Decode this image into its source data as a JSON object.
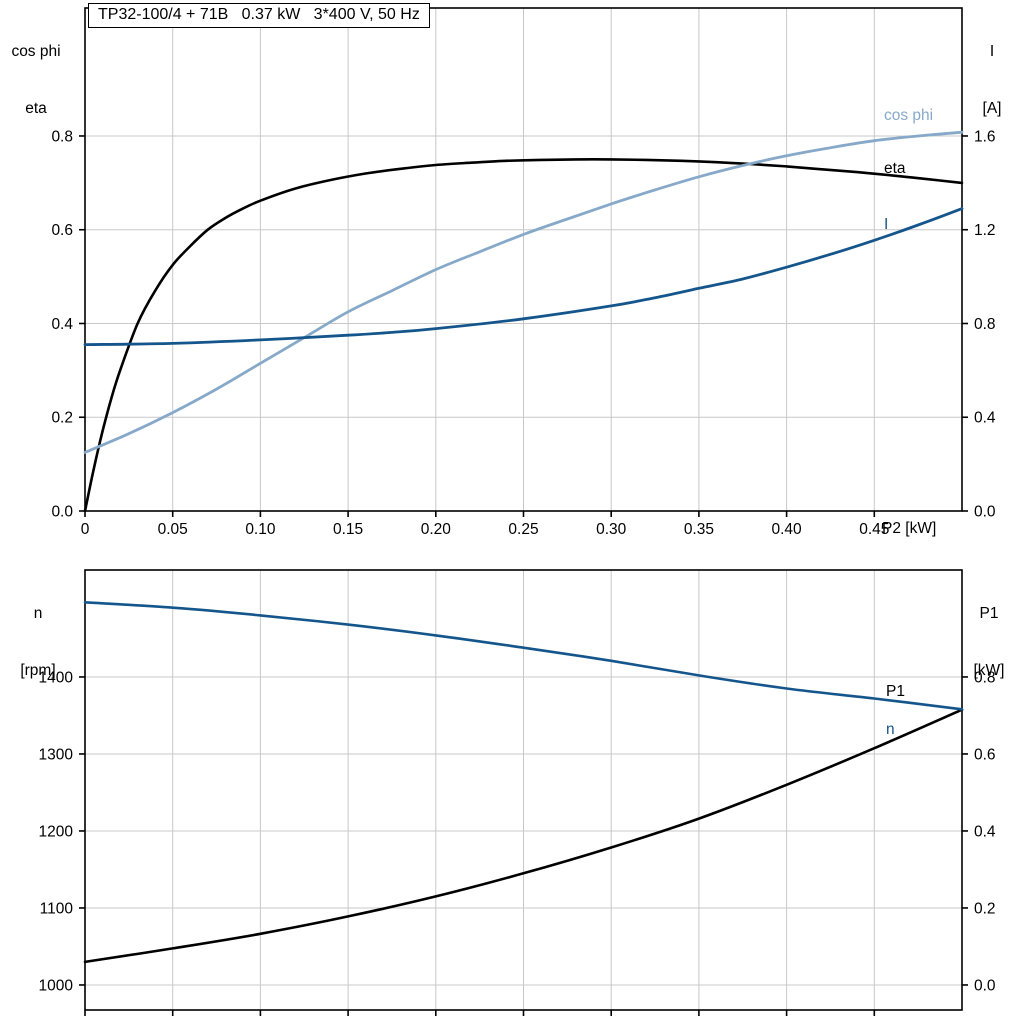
{
  "title_box": "TP32-100/4 + 71B   0.37 kW   3*400 V, 50 Hz",
  "colors": {
    "cos_phi_blue": "#87a9c9",
    "dark_blue": "#14568c",
    "black": "#000000",
    "grid": "#c8c8c8",
    "frame": "#000000",
    "background": "#ffffff"
  },
  "labels": {
    "top_left_axis_line1": "cos phi",
    "top_left_axis_line2": "eta",
    "top_right_axis_line1": "I",
    "top_right_axis_line2": "[A]",
    "x_axis": "P2 [kW]",
    "curve_cos_phi": "cos phi",
    "curve_eta": "eta",
    "curve_I": "I",
    "bottom_left_axis_line1": "n",
    "bottom_left_axis_line2": "[rpm]",
    "bottom_right_axis_line1": "P1",
    "bottom_right_axis_line2": "[kW]",
    "curve_P1": "P1",
    "curve_n": "n"
  },
  "chart_data": [
    {
      "type": "line",
      "title": "TP32-100/4 + 71B   0.37 kW   3*400 V, 50 Hz",
      "xlabel": "P2 [kW]",
      "ylabel_left": "cos phi / eta",
      "ylabel_right": "I [A]",
      "xlim": [
        0,
        0.5
      ],
      "ylim_left": [
        0,
        1.073
      ],
      "right_axis_map": {
        "m": 2,
        "b": 0
      },
      "grid": true,
      "legend_position": "right-inline",
      "xticks": {
        "values": [
          0,
          0.05,
          0.1,
          0.15,
          0.2,
          0.25,
          0.3,
          0.35,
          0.4,
          0.45
        ],
        "labels": [
          "0",
          "0.05",
          "0.10",
          "0.15",
          "0.20",
          "0.25",
          "0.30",
          "0.35",
          "0.40",
          "0.45"
        ]
      },
      "yticks_left": {
        "values": [
          0,
          0.2,
          0.4,
          0.6,
          0.8
        ],
        "labels": [
          "0.0",
          "0.2",
          "0.4",
          "0.6",
          "0.8"
        ]
      },
      "yticks_right": {
        "values": [
          0,
          0.4,
          0.8,
          1.2,
          1.6
        ],
        "labels": [
          "0.0",
          "0.4",
          "0.8",
          "1.2",
          "1.6"
        ]
      },
      "series": [
        {
          "name": "eta",
          "axis": "left",
          "color": "#000000",
          "width": 2.6,
          "x": [
            0,
            0.005,
            0.01,
            0.015,
            0.02,
            0.03,
            0.04,
            0.05,
            0.06,
            0.07,
            0.08,
            0.09,
            0.1,
            0.12,
            0.14,
            0.16,
            0.18,
            0.2,
            0.22,
            0.24,
            0.26,
            0.28,
            0.3,
            0.32,
            0.34,
            0.36,
            0.38,
            0.4,
            0.42,
            0.44,
            0.46,
            0.48,
            0.5
          ],
          "y": [
            0,
            0.09,
            0.17,
            0.24,
            0.3,
            0.4,
            0.47,
            0.525,
            0.565,
            0.6,
            0.625,
            0.645,
            0.662,
            0.688,
            0.706,
            0.72,
            0.73,
            0.738,
            0.743,
            0.747,
            0.749,
            0.75,
            0.75,
            0.749,
            0.747,
            0.744,
            0.74,
            0.735,
            0.729,
            0.723,
            0.716,
            0.708,
            0.7
          ]
        },
        {
          "name": "cos phi",
          "axis": "left",
          "color": "#87a9c9",
          "width": 2.8,
          "x": [
            0,
            0.025,
            0.05,
            0.075,
            0.1,
            0.125,
            0.15,
            0.175,
            0.2,
            0.225,
            0.25,
            0.275,
            0.3,
            0.325,
            0.35,
            0.375,
            0.4,
            0.425,
            0.45,
            0.475,
            0.5
          ],
          "y": [
            0.125,
            0.165,
            0.21,
            0.26,
            0.315,
            0.37,
            0.425,
            0.47,
            0.515,
            0.553,
            0.59,
            0.623,
            0.655,
            0.685,
            0.713,
            0.737,
            0.758,
            0.775,
            0.79,
            0.8,
            0.808
          ]
        },
        {
          "name": "I",
          "axis": "right",
          "color": "#14568c",
          "width": 2.8,
          "x": [
            0,
            0.05,
            0.1,
            0.15,
            0.175,
            0.2,
            0.25,
            0.3,
            0.325,
            0.35,
            0.375,
            0.4,
            0.425,
            0.45,
            0.475,
            0.5
          ],
          "y": [
            0.71,
            0.715,
            0.73,
            0.75,
            0.762,
            0.778,
            0.82,
            0.875,
            0.91,
            0.95,
            0.99,
            1.04,
            1.095,
            1.155,
            1.22,
            1.29
          ]
        }
      ]
    },
    {
      "type": "line",
      "title": "",
      "xlabel": "",
      "ylabel_left": "n [rpm]",
      "ylabel_right": "P1 [kW]",
      "xlim": [
        0,
        0.5
      ],
      "ylim_left": [
        967.5,
        1538.9
      ],
      "right_axis_map": {
        "m": 0.002,
        "b": -2
      },
      "grid": true,
      "legend_position": "right-inline",
      "xticks": {
        "values": [
          0,
          0.05,
          0.1,
          0.15,
          0.2,
          0.25,
          0.3,
          0.35,
          0.4,
          0.45
        ],
        "labels": []
      },
      "yticks_left": {
        "values": [
          1000,
          1100,
          1200,
          1300,
          1400
        ],
        "labels": [
          "1000",
          "1100",
          "1200",
          "1300",
          "1400"
        ]
      },
      "yticks_right": {
        "values": [
          0,
          0.2,
          0.4,
          0.6,
          0.8
        ],
        "labels": [
          "0.0",
          "0.2",
          "0.4",
          "0.6",
          "0.8"
        ]
      },
      "series": [
        {
          "name": "P1",
          "axis": "right",
          "color": "#000000",
          "width": 2.6,
          "x": [
            0,
            0.05,
            0.1,
            0.15,
            0.2,
            0.25,
            0.3,
            0.35,
            0.4,
            0.45,
            0.5
          ],
          "y": [
            0.06,
            0.095,
            0.133,
            0.178,
            0.23,
            0.29,
            0.357,
            0.432,
            0.52,
            0.615,
            0.715
          ]
        },
        {
          "name": "n",
          "axis": "left",
          "color": "#14568c",
          "width": 2.6,
          "x": [
            0,
            0.05,
            0.1,
            0.15,
            0.2,
            0.25,
            0.3,
            0.35,
            0.4,
            0.45,
            0.5
          ],
          "y": [
            1497,
            1490,
            1480,
            1468,
            1454,
            1438,
            1421,
            1402,
            1385,
            1372,
            1358
          ]
        }
      ]
    }
  ]
}
